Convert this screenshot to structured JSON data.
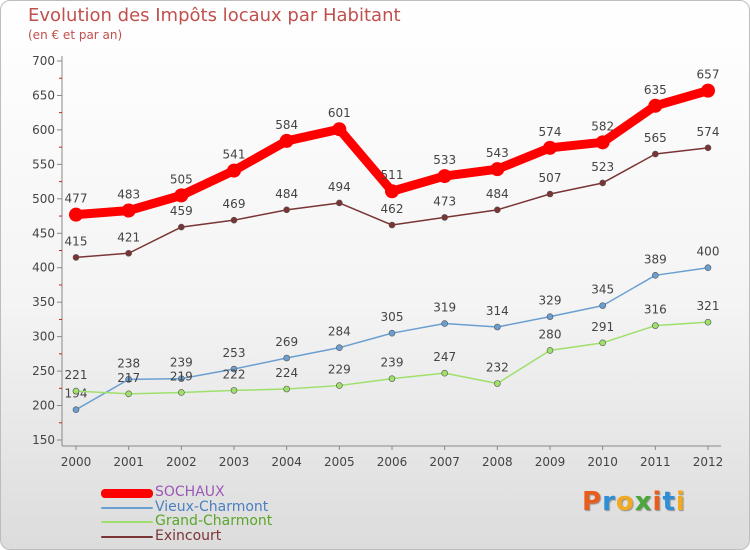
{
  "header": {
    "title": "Evolution des Impôts locaux par Habitant",
    "subtitle": "(en € et par an)"
  },
  "brand": {
    "logo_text": "Proxiti",
    "colors": [
      "#e85c1d",
      "#2f8fd6",
      "#f1a91f",
      "#4aa73c",
      "#e85c1d",
      "#2f8fd6",
      "#f1a91f"
    ]
  },
  "chart_data": {
    "type": "line",
    "title": "Evolution des Impôts locaux par Habitant",
    "subtitle": "(en € et par an)",
    "xlabel": "",
    "ylabel": "",
    "ylim": [
      150,
      700
    ],
    "yticks": [
      150,
      200,
      250,
      300,
      350,
      400,
      450,
      500,
      550,
      600,
      650,
      700
    ],
    "x": [
      2000,
      2001,
      2002,
      2003,
      2004,
      2005,
      2006,
      2007,
      2008,
      2009,
      2010,
      2011,
      2012
    ],
    "grid": false,
    "legend_position": "bottom-left",
    "series": [
      {
        "name": "SOCHAUX",
        "color": "#ff0000",
        "text_color": "#9b59b6",
        "values": [
          477,
          483,
          505,
          541,
          584,
          601,
          511,
          533,
          543,
          574,
          582,
          635,
          657
        ],
        "labels": [
          "477",
          "483",
          "505",
          "541",
          "584",
          "601",
          "511",
          "533",
          "543",
          "574",
          "582",
          "635",
          "657"
        ]
      },
      {
        "name": "Vieux-Charmont",
        "color": "#6b9fd1",
        "text_color": "#4a7fc0",
        "values": [
          194,
          238,
          239,
          253,
          269,
          284,
          305,
          319,
          314,
          329,
          345,
          389,
          400
        ],
        "labels": [
          "194",
          "238",
          "239",
          "253",
          "269",
          "284",
          "305",
          "319",
          "314",
          "329",
          "345",
          "389",
          "400"
        ]
      },
      {
        "name": "Grand-Charmont",
        "color": "#9ee06b",
        "text_color": "#5aa62a",
        "values": [
          221,
          217,
          219,
          222,
          224,
          229,
          239,
          247,
          232,
          280,
          291,
          316,
          321
        ],
        "labels": [
          "221",
          "217",
          "219",
          "222",
          "224",
          "229",
          "239",
          "247",
          "232",
          "280",
          "291",
          "316",
          "321"
        ]
      },
      {
        "name": "Exincourt",
        "color": "#7a3434",
        "text_color": "#7a3434",
        "values": [
          415,
          421,
          459,
          469,
          484,
          494,
          462,
          473,
          484,
          507,
          523,
          565,
          574
        ],
        "labels": [
          "415",
          "421",
          "459",
          "469",
          "484",
          "494",
          "462",
          "473",
          "484",
          "507",
          "523",
          "565",
          "574"
        ]
      }
    ]
  }
}
